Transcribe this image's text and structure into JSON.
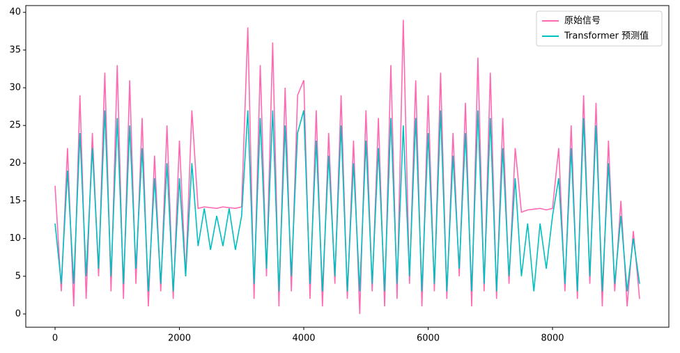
{
  "chart_data": {
    "type": "line",
    "x": [
      0,
      100,
      200,
      300,
      400,
      500,
      600,
      700,
      800,
      900,
      1000,
      1100,
      1200,
      1300,
      1400,
      1500,
      1600,
      1700,
      1800,
      1900,
      2000,
      2100,
      2200,
      2300,
      2400,
      2500,
      2600,
      2700,
      2800,
      2900,
      3000,
      3100,
      3200,
      3300,
      3400,
      3500,
      3600,
      3700,
      3800,
      3900,
      4000,
      4100,
      4200,
      4300,
      4400,
      4500,
      4600,
      4700,
      4800,
      4900,
      5000,
      5100,
      5200,
      5300,
      5400,
      5500,
      5600,
      5700,
      5800,
      5900,
      6000,
      6100,
      6200,
      6300,
      6400,
      6500,
      6600,
      6700,
      6800,
      6900,
      7000,
      7100,
      7200,
      7300,
      7400,
      7500,
      7600,
      7700,
      7800,
      7900,
      8000,
      8100,
      8200,
      8300,
      8400,
      8500,
      8600,
      8700,
      8800,
      8900,
      9000,
      9100,
      9200,
      9300,
      9400
    ],
    "series": [
      {
        "name": "原始信号",
        "color": "#ff69b4",
        "values": [
          17,
          3,
          22,
          1,
          29,
          2,
          24,
          5,
          32,
          3,
          33,
          2,
          31,
          4,
          26,
          1,
          21,
          3,
          25,
          2,
          23,
          5,
          27,
          14,
          14.2,
          14.1,
          14,
          14.2,
          14.1,
          14,
          14.2,
          38,
          2,
          33,
          5,
          36,
          1,
          30,
          3,
          29,
          31,
          2,
          27,
          1,
          24,
          4,
          29,
          2,
          23,
          0,
          27,
          3,
          26,
          1,
          33,
          2,
          39,
          4,
          31,
          1,
          29,
          3,
          32,
          2,
          24,
          5,
          28,
          1,
          34,
          3,
          32,
          2,
          26,
          4,
          22,
          13.5,
          13.8,
          13.9,
          14,
          13.8,
          14,
          22,
          3,
          25,
          2,
          29,
          4,
          28,
          1,
          23,
          3,
          15,
          1,
          11,
          2
        ]
      },
      {
        "name": "Transformer 预测值",
        "color": "#00bfbf",
        "values": [
          12,
          4,
          19,
          4,
          24,
          5,
          22,
          6,
          27,
          5,
          26,
          4,
          25,
          6,
          22,
          3,
          18,
          4,
          20,
          3,
          18,
          5,
          20,
          9,
          14,
          8.5,
          13,
          9,
          14,
          8.5,
          13,
          27,
          4,
          26,
          6,
          27,
          3,
          25,
          5,
          24,
          27,
          4,
          23,
          3,
          21,
          5,
          25,
          3,
          20,
          3,
          23,
          4,
          22,
          3,
          26,
          4,
          25,
          5,
          26,
          3,
          24,
          4,
          27,
          3,
          21,
          6,
          24,
          3,
          27,
          4,
          26,
          3,
          22,
          5,
          18,
          5,
          12,
          3,
          12,
          6,
          13,
          18,
          4,
          22,
          3,
          26,
          5,
          25,
          3,
          20,
          4,
          13,
          3,
          10,
          4
        ]
      }
    ],
    "xlim": [
      -471,
      9871
    ],
    "ylim": [
      -1.76,
      40.9
    ],
    "xticks": [
      0,
      2000,
      4000,
      6000,
      8000
    ],
    "yticks": [
      0,
      5,
      10,
      15,
      20,
      25,
      30,
      35,
      40
    ],
    "legend": "upper right"
  }
}
